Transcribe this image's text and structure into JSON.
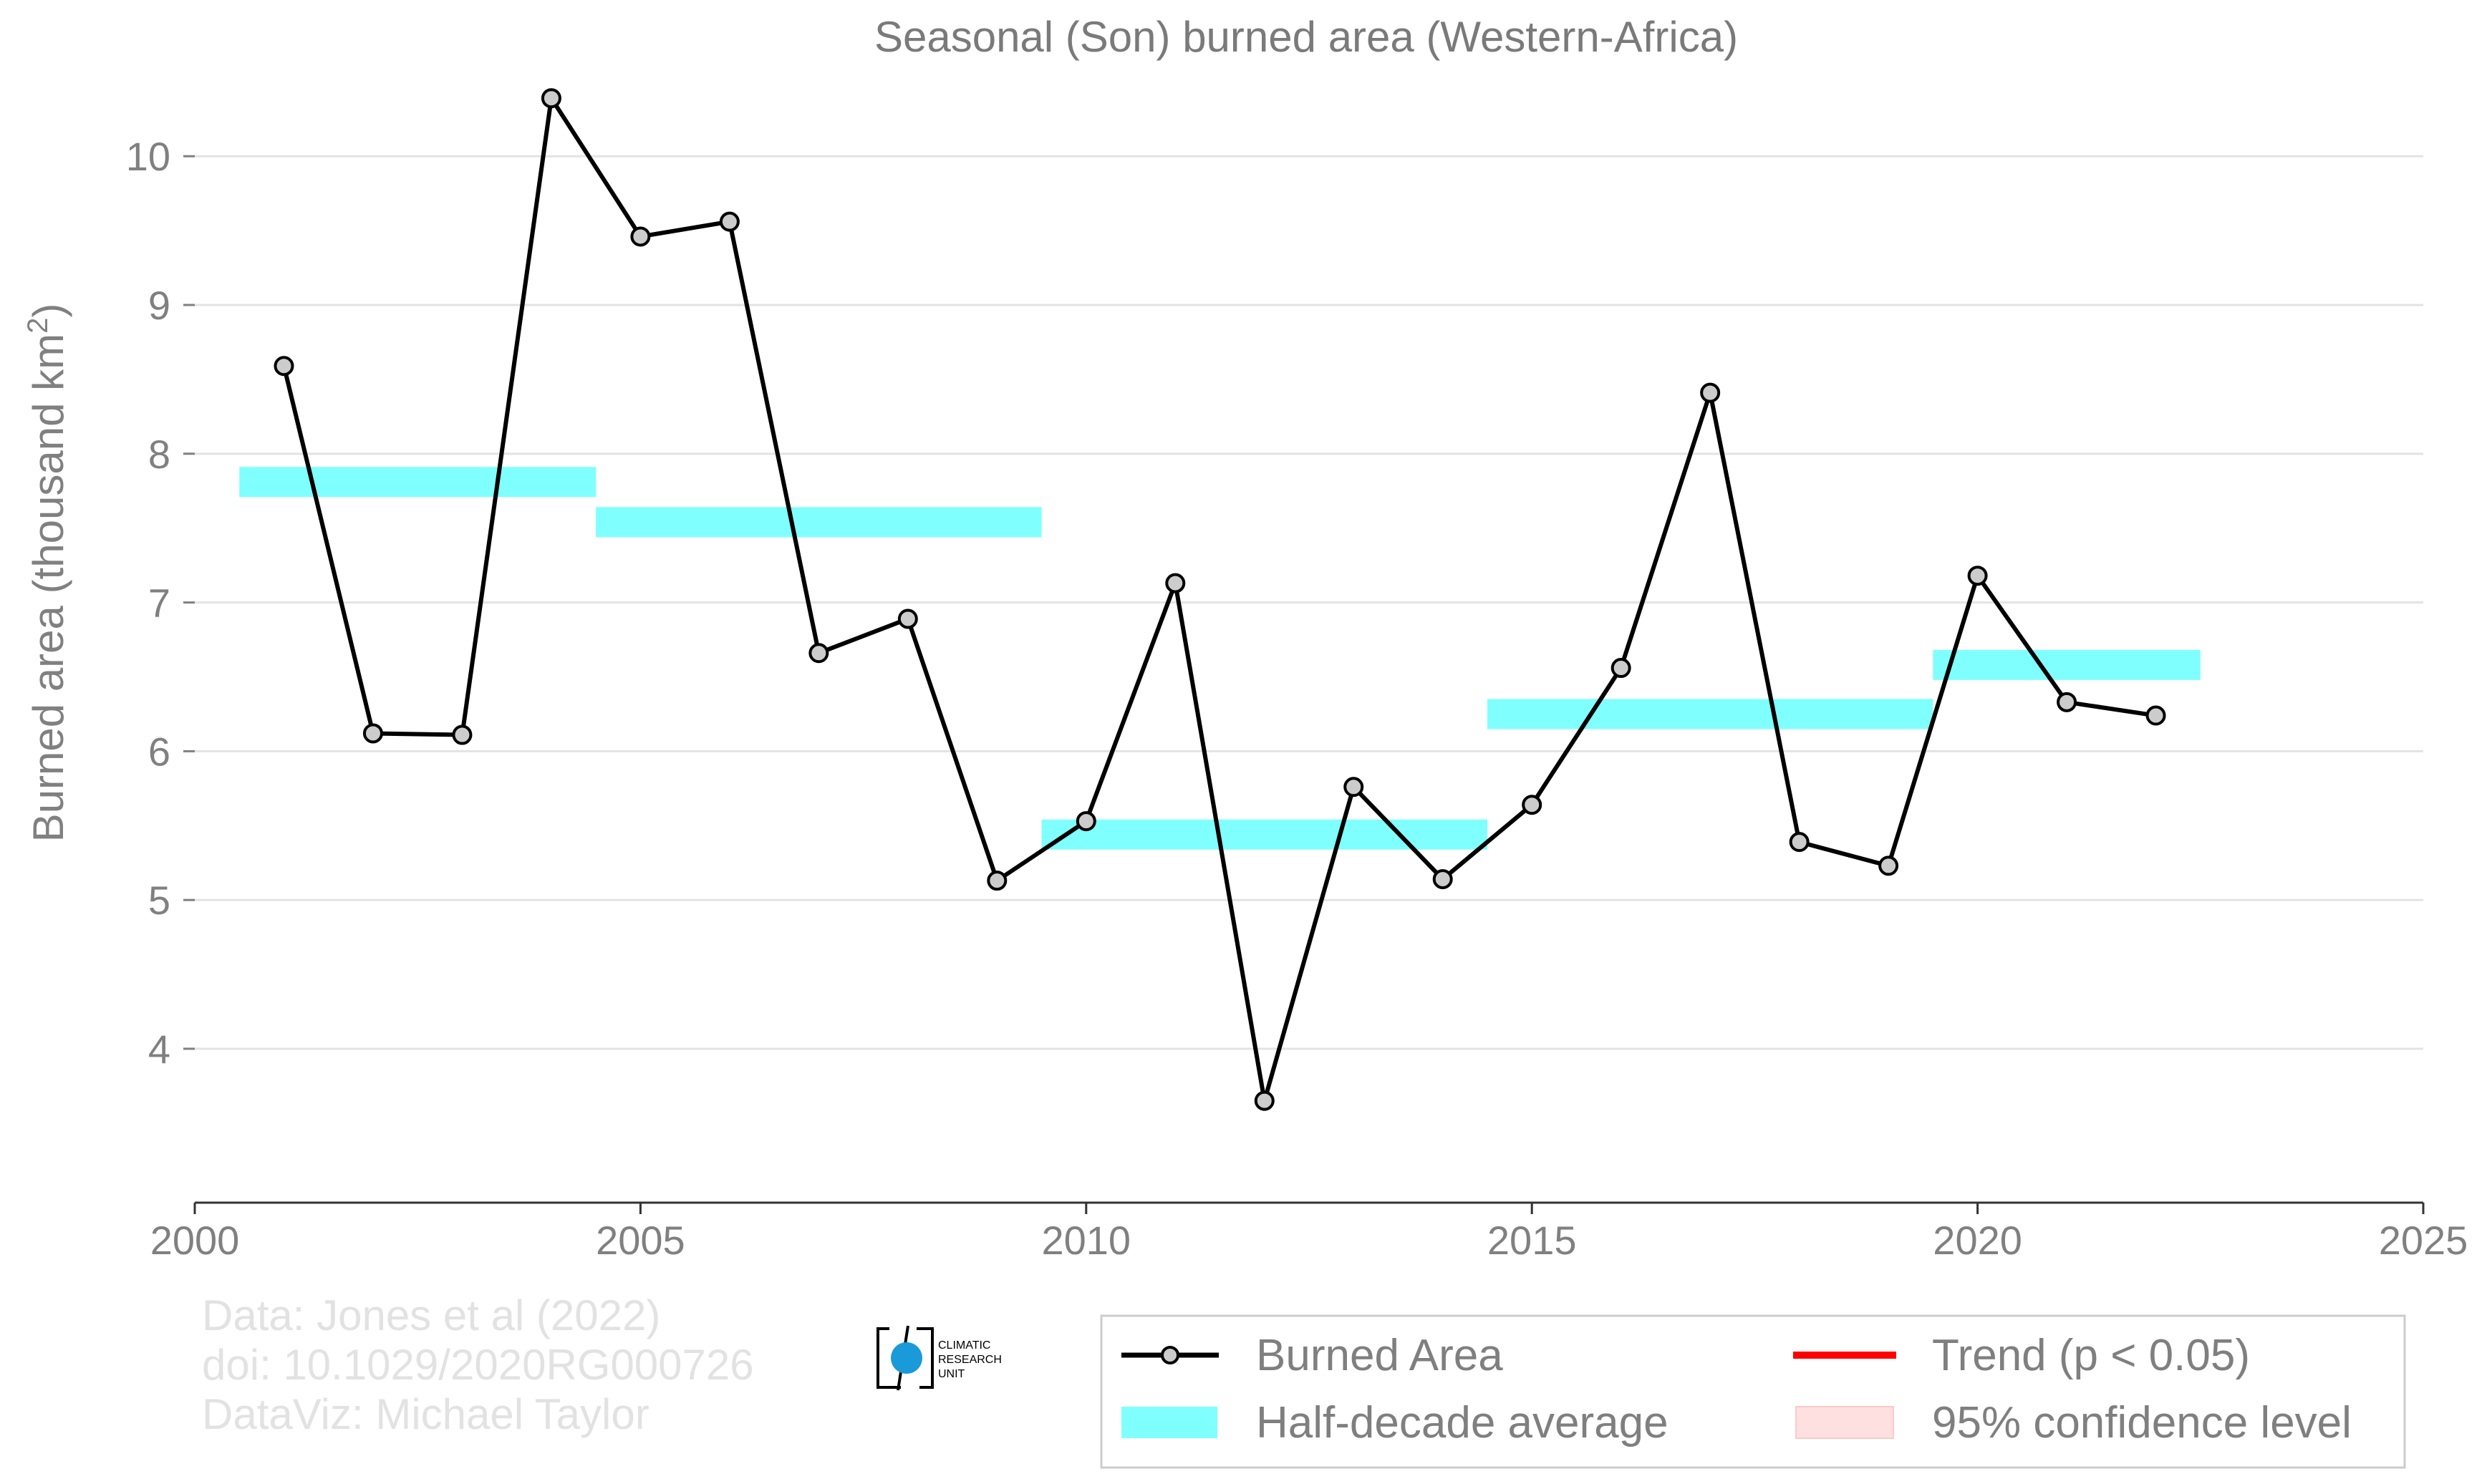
{
  "chart_data": {
    "type": "line",
    "title": "Seasonal (Son) burned area (Western-Africa)",
    "ylabel": "Burned area (thousand km",
    "ylabel_sup": "2",
    "ylabel_end": ")",
    "xlim": [
      2000,
      2025
    ],
    "ylim": [
      3.1,
      10.8
    ],
    "xticks": [
      2000,
      2005,
      2010,
      2015,
      2020,
      2025
    ],
    "yticks": [
      4,
      5,
      6,
      7,
      8,
      9,
      10
    ],
    "grid": true,
    "series": [
      {
        "name": "Burned Area",
        "color": "#000000",
        "marker_fill": "#cccccc",
        "x": [
          2001,
          2002,
          2003,
          2004,
          2005,
          2006,
          2007,
          2008,
          2009,
          2010,
          2011,
          2012,
          2013,
          2014,
          2015,
          2016,
          2017,
          2018,
          2019,
          2020,
          2021,
          2022
        ],
        "y": [
          8.59,
          6.12,
          6.11,
          10.39,
          9.46,
          9.56,
          6.66,
          6.89,
          5.13,
          5.53,
          7.13,
          3.65,
          5.76,
          5.14,
          5.64,
          6.56,
          8.41,
          5.39,
          5.23,
          7.18,
          6.33,
          6.24
        ]
      }
    ],
    "half_decade_averages": {
      "name": "Half-decade average",
      "color": "#80ffff",
      "segments": [
        {
          "x0": 2000.5,
          "x1": 2004.5,
          "y": 7.81
        },
        {
          "x0": 2004.5,
          "x1": 2009.5,
          "y": 7.54
        },
        {
          "x0": 2009.5,
          "x1": 2014.5,
          "y": 5.44
        },
        {
          "x0": 2014.5,
          "x1": 2019.5,
          "y": 6.25
        },
        {
          "x0": 2019.5,
          "x1": 2022.5,
          "y": 6.58
        }
      ]
    },
    "legend": {
      "placement": "bottom-right",
      "entries": [
        {
          "label": "Burned Area",
          "kind": "line-marker",
          "color": "#000000"
        },
        {
          "label": "Trend (p < 0.05)",
          "kind": "line",
          "color": "#ff0000"
        },
        {
          "label": "Half-decade average",
          "kind": "band",
          "color": "#80ffff"
        },
        {
          "label": "95% confidence level",
          "kind": "band",
          "color": "#ffe0e0"
        }
      ]
    },
    "credits": [
      "Data: Jones et al (2022)",
      "doi: 10.1029/2020RG000726",
      "DataViz: Michael Taylor"
    ],
    "logo_text": [
      "CLIMATIC",
      "RESEARCH",
      "UNIT"
    ]
  }
}
